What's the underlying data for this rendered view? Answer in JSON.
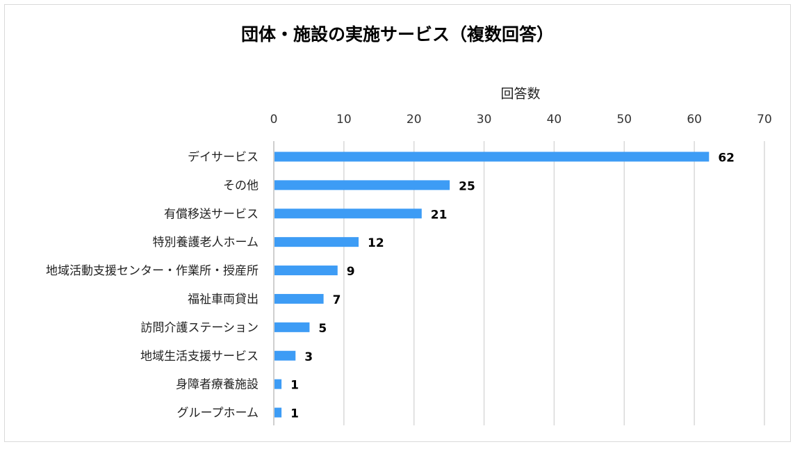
{
  "chart_data": {
    "type": "bar",
    "orientation": "horizontal",
    "title": "団体・施設の実施サービス（複数回答）",
    "xlabel": "回答数",
    "ylabel": "",
    "xlim": [
      0,
      70
    ],
    "x_ticks": [
      "0",
      "10",
      "20",
      "30",
      "40",
      "50",
      "60",
      "70"
    ],
    "x_axis_position": "top",
    "grid": true,
    "categories": [
      "デイサービス",
      "その他",
      "有償移送サービス",
      "特別養護老人ホーム",
      "地域活動支援センター・作業所・授産所",
      "福祉車両貸出",
      "訪問介護ステーション",
      "地域生活支援サービス",
      "身障者療養施設",
      "グループホーム"
    ],
    "values": [
      62,
      25,
      21,
      12,
      9,
      7,
      5,
      3,
      1,
      1
    ],
    "data_labels": [
      "62",
      "25",
      "21",
      "12",
      "9",
      "7",
      "5",
      "3",
      "1",
      "1"
    ],
    "bar_color": "#3d9cf5",
    "grid_color": "#d9d9d9"
  }
}
